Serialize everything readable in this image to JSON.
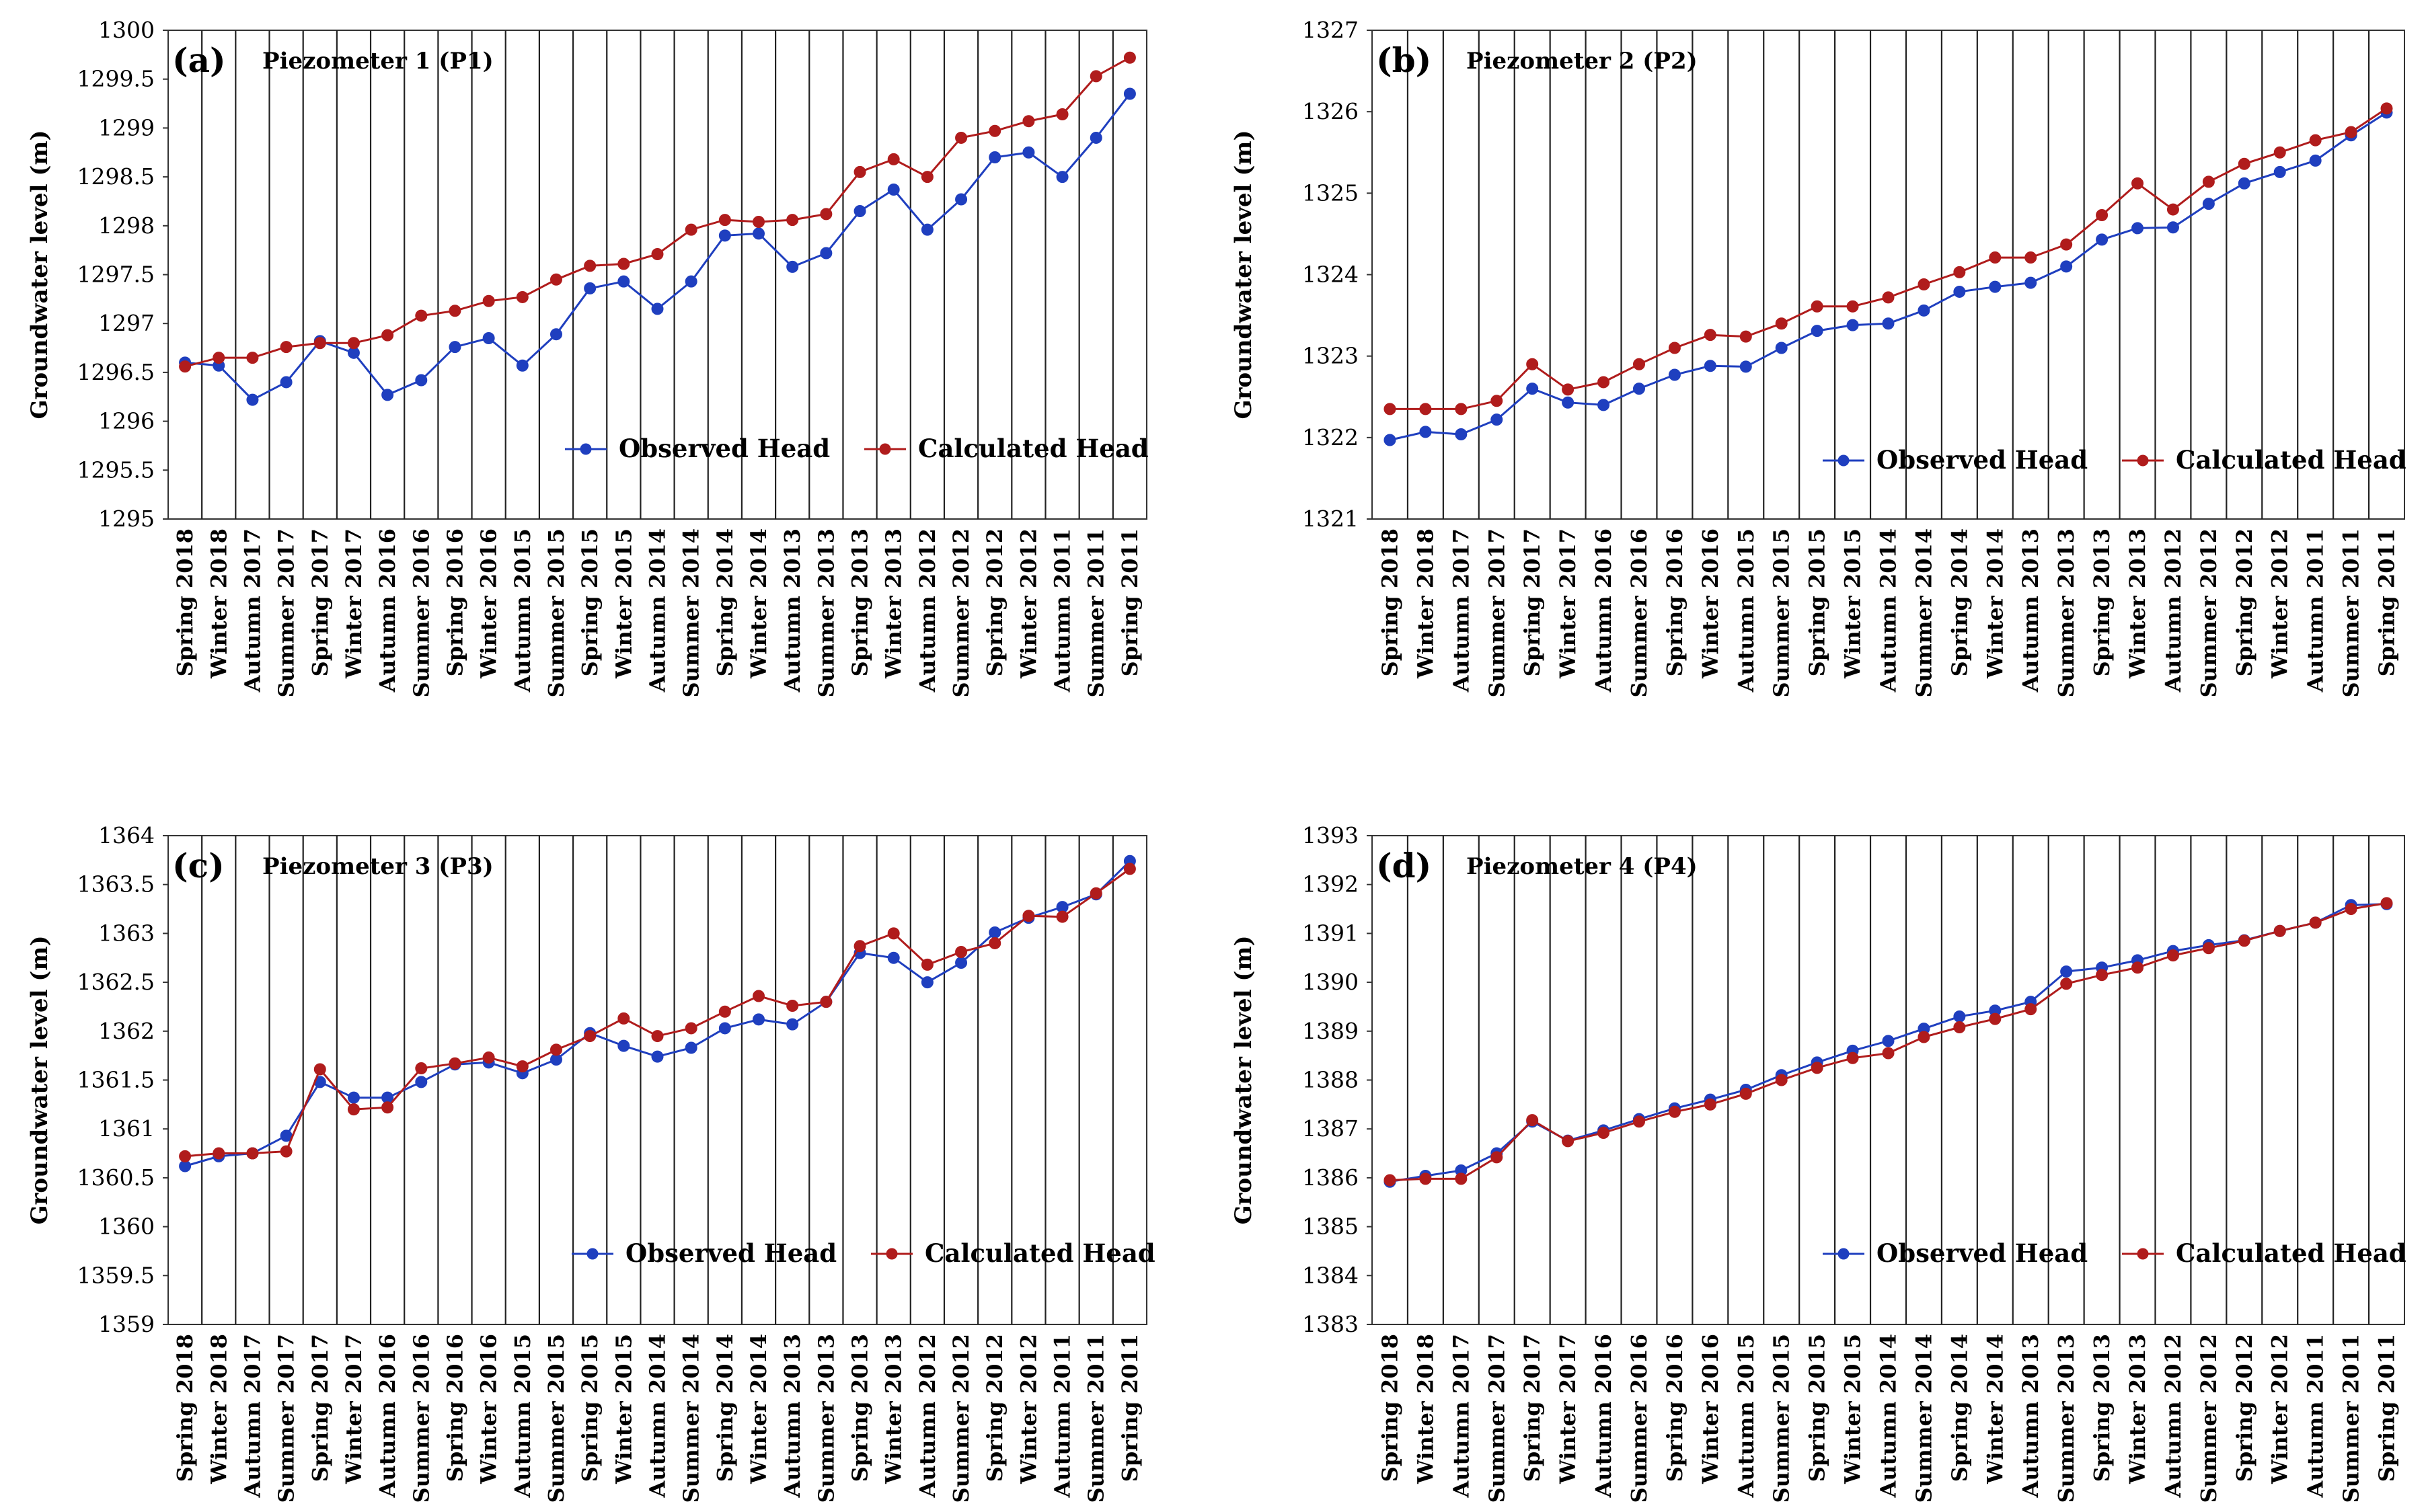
{
  "chart_data": [
    {
      "type": "line",
      "panel_label": "(a)",
      "title": "Piezometer 1 (P1)",
      "xlabel": "",
      "ylabel": "Groundwater level (m)",
      "ylim": [
        1295,
        1300
      ],
      "ytick_step": 0.5,
      "yticks": [
        "1295",
        "1295.5",
        "1296",
        "1296.5",
        "1297",
        "1297.5",
        "1298",
        "1298.5",
        "1299",
        "1299.5",
        "1300"
      ],
      "grid": "vertical",
      "legend_position": "bottom-right",
      "categories": [
        "Spring 2018",
        "Winter 2018",
        "Autumn 2017",
        "Summer 2017",
        "Spring 2017",
        "Winter 2017",
        "Autumn 2016",
        "Summer 2016",
        "Spring 2016",
        "Winter 2016",
        "Autumn 2015",
        "Summer 2015",
        "Spring 2015",
        "Winter 2015",
        "Autumn 2014",
        "Summer 2014",
        "Spring 2014",
        "Winter 2014",
        "Autumn 2013",
        "Summer 2013",
        "Spring 2013",
        "Winter 2013",
        "Autumn 2012",
        "Summer 2012",
        "Spring 2012",
        "Winter 2012",
        "Autumn 2011",
        "Summer 2011",
        "Spring 2011"
      ],
      "series": [
        {
          "name": "Observed Head",
          "color": "#1f3fbf",
          "values": [
            1296.6,
            1296.57,
            1296.22,
            1296.4,
            1296.82,
            1296.7,
            1296.27,
            1296.42,
            1296.76,
            1296.85,
            1296.57,
            1296.89,
            1297.36,
            1297.43,
            1297.15,
            1297.43,
            1297.9,
            1297.92,
            1297.58,
            1297.72,
            1298.15,
            1298.37,
            1297.96,
            1298.27,
            1298.7,
            1298.75,
            1298.5,
            1298.9,
            1299.35
          ]
        },
        {
          "name": "Calculated Head",
          "color": "#b01c1c",
          "values": [
            1296.56,
            1296.65,
            1296.65,
            1296.76,
            1296.8,
            1296.8,
            1296.88,
            1297.08,
            1297.13,
            1297.23,
            1297.27,
            1297.45,
            1297.59,
            1297.61,
            1297.71,
            1297.96,
            1298.06,
            1298.04,
            1298.06,
            1298.12,
            1298.55,
            1298.68,
            1298.5,
            1298.9,
            1298.97,
            1299.07,
            1299.14,
            1299.53,
            1299.72
          ]
        }
      ]
    },
    {
      "type": "line",
      "panel_label": "(b)",
      "title": "Piezometer 2 (P2)",
      "xlabel": "",
      "ylabel": "Groundwater level (m)",
      "ylim": [
        1321,
        1327
      ],
      "ytick_step": 1,
      "yticks": [
        "1321",
        "1322",
        "1323",
        "1324",
        "1325",
        "1326",
        "1327"
      ],
      "grid": "vertical",
      "legend_position": "bottom-right",
      "categories": [
        "Spring 2018",
        "Winter 2018",
        "Autumn 2017",
        "Summer 2017",
        "Spring 2017",
        "Winter 2017",
        "Autumn 2016",
        "Summer 2016",
        "Spring 2016",
        "Winter 2016",
        "Autumn 2015",
        "Summer 2015",
        "Spring 2015",
        "Winter 2015",
        "Autumn 2014",
        "Summer 2014",
        "Spring 2014",
        "Winter 2014",
        "Autumn 2013",
        "Summer 2013",
        "Spring 2013",
        "Winter 2013",
        "Autumn 2012",
        "Summer 2012",
        "Spring 2012",
        "Winter 2012",
        "Autumn 2011",
        "Summer 2011",
        "Spring 2011"
      ],
      "series": [
        {
          "name": "Observed Head",
          "color": "#1f3fbf",
          "values": [
            1321.97,
            1322.07,
            1322.04,
            1322.22,
            1322.6,
            1322.43,
            1322.4,
            1322.6,
            1322.77,
            1322.88,
            1322.87,
            1323.1,
            1323.31,
            1323.38,
            1323.4,
            1323.56,
            1323.79,
            1323.85,
            1323.9,
            1324.1,
            1324.43,
            1324.57,
            1324.58,
            1324.87,
            1325.12,
            1325.26,
            1325.4,
            1325.71,
            1325.99
          ]
        },
        {
          "name": "Calculated Head",
          "color": "#b01c1c",
          "values": [
            1322.35,
            1322.35,
            1322.35,
            1322.45,
            1322.9,
            1322.59,
            1322.68,
            1322.9,
            1323.1,
            1323.26,
            1323.24,
            1323.4,
            1323.61,
            1323.61,
            1323.72,
            1323.88,
            1324.03,
            1324.21,
            1324.21,
            1324.37,
            1324.73,
            1325.12,
            1324.8,
            1325.14,
            1325.36,
            1325.5,
            1325.65,
            1325.75,
            1326.04
          ]
        }
      ]
    },
    {
      "type": "line",
      "panel_label": "(c)",
      "title": "Piezometer 3 (P3)",
      "xlabel": "",
      "ylabel": "Groundwater level (m)",
      "ylim": [
        1359,
        1364
      ],
      "ytick_step": 0.5,
      "yticks": [
        "1359",
        "1359.5",
        "1360",
        "1360.5",
        "1361",
        "1361.5",
        "1362",
        "1362.5",
        "1363",
        "1363.5",
        "1364"
      ],
      "grid": "vertical",
      "legend_position": "bottom-right",
      "categories": [
        "Spring 2018",
        "Winter 2018",
        "Autumn 2017",
        "Summer 2017",
        "Spring 2017",
        "Winter 2017",
        "Autumn 2016",
        "Summer 2016",
        "Spring 2016",
        "Winter 2016",
        "Autumn 2015",
        "Summer 2015",
        "Spring 2015",
        "Winter 2015",
        "Autumn 2014",
        "Summer 2014",
        "Spring 2014",
        "Winter 2014",
        "Autumn 2013",
        "Summer 2013",
        "Spring 2013",
        "Winter 2013",
        "Autumn 2012",
        "Summer 2012",
        "Spring 2012",
        "Winter 2012",
        "Autumn 2011",
        "Summer 2011",
        "Spring 2011"
      ],
      "series": [
        {
          "name": "Observed Head",
          "color": "#1f3fbf",
          "values": [
            1360.62,
            1360.72,
            1360.75,
            1360.93,
            1361.48,
            1361.32,
            1361.32,
            1361.48,
            1361.66,
            1361.68,
            1361.57,
            1361.71,
            1361.98,
            1361.85,
            1361.74,
            1361.83,
            1362.03,
            1362.12,
            1362.07,
            1362.3,
            1362.8,
            1362.75,
            1362.5,
            1362.7,
            1363.01,
            1363.16,
            1363.27,
            1363.4,
            1363.74
          ]
        },
        {
          "name": "Calculated Head",
          "color": "#b01c1c",
          "values": [
            1360.72,
            1360.75,
            1360.75,
            1360.77,
            1361.61,
            1361.2,
            1361.22,
            1361.62,
            1361.67,
            1361.73,
            1361.64,
            1361.81,
            1361.95,
            1362.13,
            1361.95,
            1362.03,
            1362.2,
            1362.36,
            1362.26,
            1362.3,
            1362.87,
            1363.0,
            1362.68,
            1362.81,
            1362.9,
            1363.18,
            1363.17,
            1363.41,
            1363.66
          ]
        }
      ]
    },
    {
      "type": "line",
      "panel_label": "(d)",
      "title": "Piezometer 4 (P4)",
      "xlabel": "",
      "ylabel": "Groundwater level (m)",
      "ylim": [
        1383,
        1393
      ],
      "ytick_step": 1,
      "yticks": [
        "1383",
        "1384",
        "1385",
        "1386",
        "1387",
        "1388",
        "1389",
        "1390",
        "1391",
        "1392",
        "1393"
      ],
      "grid": "vertical",
      "legend_position": "bottom-right",
      "categories": [
        "Spring 2018",
        "Winter 2018",
        "Autumn 2017",
        "Summer 2017",
        "Spring 2017",
        "Winter 2017",
        "Autumn 2016",
        "Summer 2016",
        "Spring 2016",
        "Winter 2016",
        "Autumn 2015",
        "Summer 2015",
        "Spring 2015",
        "Winter 2015",
        "Autumn 2014",
        "Summer 2014",
        "Spring 2014",
        "Winter 2014",
        "Autumn 2013",
        "Summer 2013",
        "Spring 2013",
        "Winter 2013",
        "Autumn 2012",
        "Summer 2012",
        "Spring 2012",
        "Winter 2012",
        "Autumn 2011",
        "Summer 2011",
        "Spring 2011"
      ],
      "series": [
        {
          "name": "Observed Head",
          "color": "#1f3fbf",
          "values": [
            1385.92,
            1386.04,
            1386.15,
            1386.5,
            1387.15,
            1386.76,
            1386.97,
            1387.2,
            1387.42,
            1387.6,
            1387.8,
            1388.1,
            1388.36,
            1388.6,
            1388.8,
            1389.05,
            1389.3,
            1389.42,
            1389.6,
            1390.22,
            1390.3,
            1390.45,
            1390.64,
            1390.76,
            1390.86,
            1391.05,
            1391.22,
            1391.58,
            1391.6
          ]
        },
        {
          "name": "Calculated Head",
          "color": "#b01c1c",
          "values": [
            1385.95,
            1385.98,
            1385.98,
            1386.42,
            1387.18,
            1386.75,
            1386.92,
            1387.15,
            1387.35,
            1387.5,
            1387.72,
            1388.0,
            1388.25,
            1388.45,
            1388.55,
            1388.88,
            1389.08,
            1389.25,
            1389.45,
            1389.97,
            1390.15,
            1390.3,
            1390.55,
            1390.7,
            1390.85,
            1391.05,
            1391.22,
            1391.5,
            1391.62
          ]
        }
      ]
    }
  ]
}
